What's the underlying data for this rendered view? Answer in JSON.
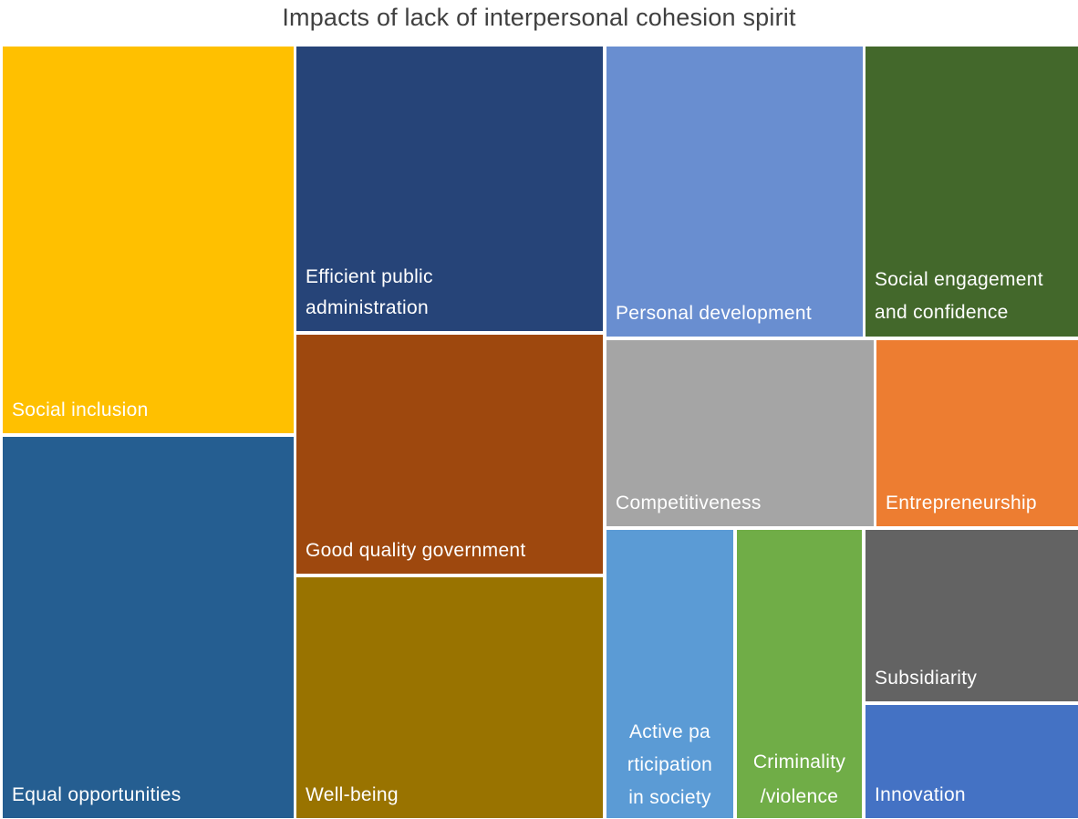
{
  "chart_data": {
    "type": "treemap",
    "title": "Impacts of lack of interpersonal cohesion spirit",
    "items": [
      {
        "label": "Social inclusion",
        "color": "#FFC000"
      },
      {
        "label": "Equal opportunities",
        "color": "#255E91"
      },
      {
        "label": "Efficient public administration",
        "color": "#264478"
      },
      {
        "label": "Good quality government",
        "color": "#9E480E"
      },
      {
        "label": "Well-being",
        "color": "#997300"
      },
      {
        "label": "Personal development",
        "color": "#698ED0"
      },
      {
        "label": "Social engagement and confidence",
        "color": "#43682B"
      },
      {
        "label": "Competitiveness",
        "color": "#A5A5A5"
      },
      {
        "label": "Entrepreneurship",
        "color": "#ED7D31"
      },
      {
        "label": "Active participation in society",
        "color": "#5B9BD5"
      },
      {
        "label": "Criminality /violence",
        "color": "#70AD47"
      },
      {
        "label": "Subsidiarity",
        "color": "#636363"
      },
      {
        "label": "Innovation",
        "color": "#4472C4"
      }
    ]
  }
}
